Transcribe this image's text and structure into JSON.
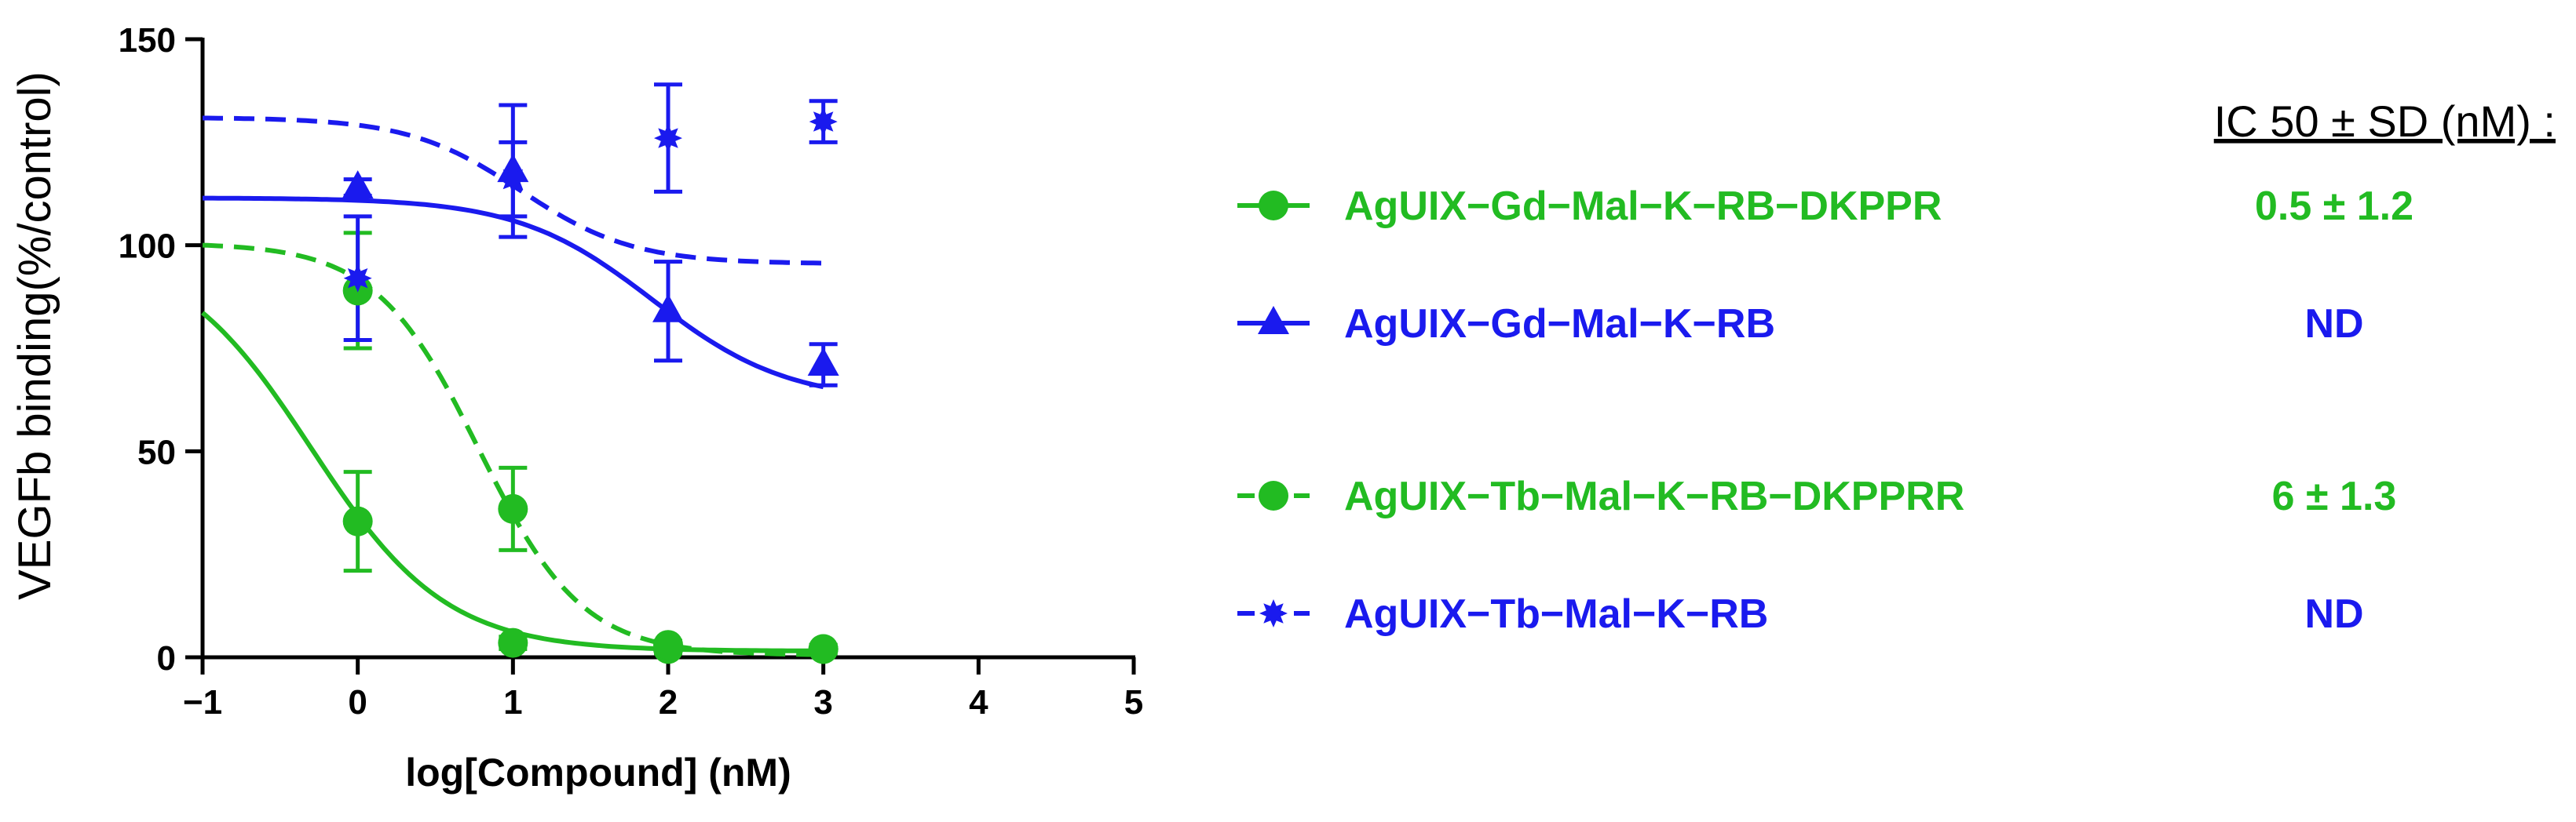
{
  "chart_data": {
    "type": "line",
    "xlabel": "log[Compound] (nM)",
    "ylabel": "VEGFb binding(%/control)",
    "xlim": [
      -1,
      5
    ],
    "ylim": [
      0,
      150
    ],
    "x_ticks": [
      -1,
      0,
      1,
      2,
      3,
      4,
      5
    ],
    "x_tick_labels": [
      "−1",
      "0",
      "1",
      "2",
      "3",
      "4",
      "5"
    ],
    "y_ticks": [
      0,
      50,
      100,
      150
    ],
    "y_tick_labels": [
      "0",
      "50",
      "100",
      "150"
    ],
    "legend_position": "right",
    "series": [
      {
        "name": "AgUIX−Gd−Mal−K−RB−DKPPR",
        "color": "#22bb22",
        "marker": "circle",
        "line_style": "solid",
        "points": [
          {
            "x": 0,
            "y": 33,
            "err": 12
          },
          {
            "x": 1,
            "y": 3.5,
            "err": 1.5
          },
          {
            "x": 2,
            "y": 2,
            "err": 1
          },
          {
            "x": 3,
            "y": 2,
            "err": 1
          }
        ],
        "fit": {
          "top": 100,
          "bottom": 1.5,
          "log_ic50": -0.3,
          "hill": 1,
          "x_range": [
            -1,
            3
          ]
        },
        "ic50": "0.5 ± 1.2"
      },
      {
        "name": "AgUIX−Gd−Mal−K−RB",
        "color": "#1a1aee",
        "marker": "triangle",
        "line_style": "solid",
        "points": [
          {
            "x": 0,
            "y": 114,
            "err": 2
          },
          {
            "x": 1,
            "y": 118,
            "err": 16
          },
          {
            "x": 2,
            "y": 84,
            "err": 12
          },
          {
            "x": 3,
            "y": 71,
            "err": 5
          }
        ],
        "fit": {
          "top": 111.5,
          "bottom": 62,
          "log_ic50": 1.9,
          "hill": 1,
          "x_range": [
            -1,
            3
          ]
        },
        "ic50": "ND"
      },
      {
        "name": "AgUIX−Tb−Mal−K−RB−DKPPRR",
        "color": "#22bb22",
        "marker": "circle",
        "line_style": "dashed",
        "points": [
          {
            "x": 0,
            "y": 89,
            "err": 14
          },
          {
            "x": 1,
            "y": 36,
            "err": 10
          },
          {
            "x": 2,
            "y": 3,
            "err": 1
          },
          {
            "x": 3,
            "y": 2,
            "err": 1
          }
        ],
        "fit": {
          "top": 100.5,
          "bottom": 0.5,
          "log_ic50": 0.78,
          "hill": 1.3,
          "x_range": [
            -1,
            3
          ]
        },
        "ic50": "6 ± 1.3"
      },
      {
        "name": "AgUIX−Tb−Mal−K−RB",
        "color": "#1a1aee",
        "marker": "star",
        "line_style": "dashed",
        "points": [
          {
            "x": 0,
            "y": 92,
            "err": 15
          },
          {
            "x": 1,
            "y": 116,
            "err": 9
          },
          {
            "x": 2,
            "y": 126,
            "err": 13
          },
          {
            "x": 3,
            "y": 130,
            "err": 5
          }
        ],
        "fit": {
          "top": 131,
          "bottom": 95.5,
          "log_ic50": 1.05,
          "hill": 1.2,
          "x_range": [
            -1,
            3
          ]
        },
        "ic50": "ND"
      }
    ],
    "ic50_header": "IC 50 ± SD (nM) :"
  }
}
